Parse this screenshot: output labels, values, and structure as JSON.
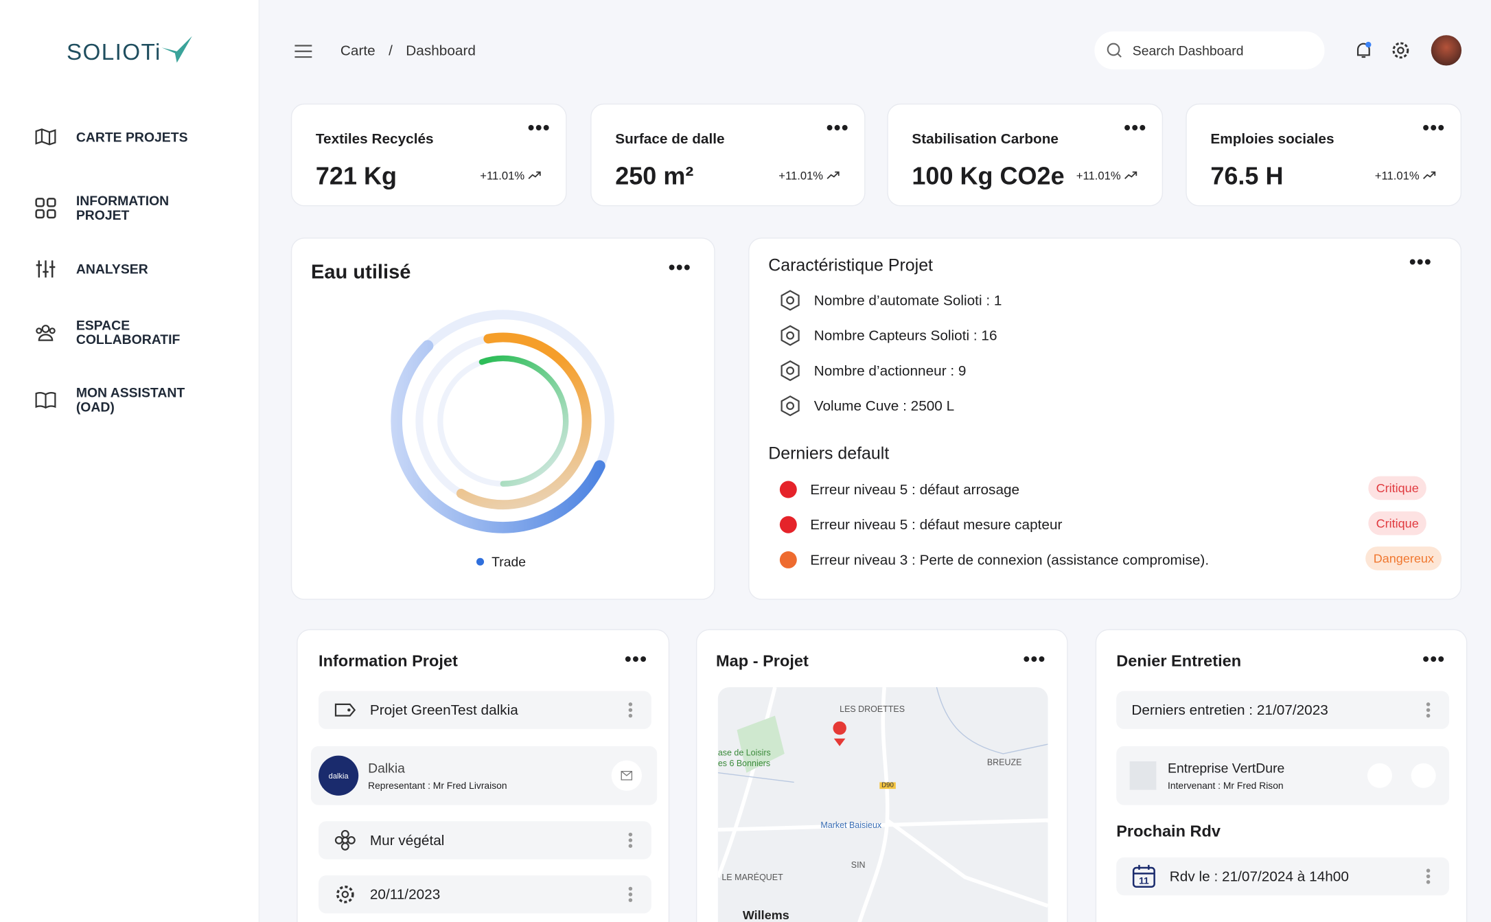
{
  "sidebar": {
    "logo": "SOLIOTi",
    "menu": [
      "CARTE PROJETS",
      "INFORMATION PROJET",
      "ANALYSER",
      "ESPACE COLLABORATIF",
      "MON ASSISTANT (OAD)"
    ]
  },
  "header": {
    "breadcrumb": [
      "Carte",
      "Dashboard"
    ],
    "separator": "/",
    "search_placeholder": "Search Dashboard"
  },
  "stats": [
    {
      "label": "Textiles Recyclés",
      "value": "721 Kg",
      "change": "+11.01%"
    },
    {
      "label": "Surface de dalle",
      "value": "250 m²",
      "change": "+11.01%"
    },
    {
      "label": "Stabilisation Carbone",
      "value": "100 Kg CO2e",
      "change": "+11.01%"
    },
    {
      "label": "Emploies sociales",
      "value": "76.5 H",
      "change": "+11.01%"
    }
  ],
  "water": {
    "title": "Eau utilisé",
    "legend": "Trade"
  },
  "characteristics": {
    "title": "Caractéristique Projet",
    "items": [
      "Nombre d’automate Solioti : 1",
      "Nombre Capteurs Solioti : 16",
      "Nombre d’actionneur :  9",
      "Volume Cuve :  2500 L"
    ],
    "defaults_title": "Derniers default",
    "defaults": [
      {
        "text": "Erreur niveau 5 : défaut arrosage",
        "badge": "Critique"
      },
      {
        "text": "Erreur niveau 5 : défaut mesure capteur",
        "badge": "Critique"
      },
      {
        "text": "Erreur niveau 3 : Perte de connexion (assistance compromise).",
        "badge": "Dangereux"
      }
    ]
  },
  "info_projet": {
    "title": "Information Projet",
    "project": "Projet GreenTest dalkia",
    "company": "Dalkia",
    "representative": "Representant : Mr Fred Livraison",
    "type": "Mur végétal",
    "date": "20/11/2023"
  },
  "map": {
    "title": "Map - Projet",
    "labels": [
      "LES DROETTES",
      "BREUZE",
      "ase de Loisirs",
      "es 6 Bonniers",
      "D90",
      "Market Baisieux",
      "SIN",
      "LE MARÉQUET",
      "Willems"
    ]
  },
  "maintenance": {
    "title": "Denier Entretien",
    "last": "Derniers entretien : 21/07/2023",
    "company": "Entreprise VertDure",
    "worker": "Intervenant : Mr Fred Rison",
    "next_title": "Prochain Rdv",
    "next": "Rdv le : 21/07/2024 à 14h00"
  }
}
